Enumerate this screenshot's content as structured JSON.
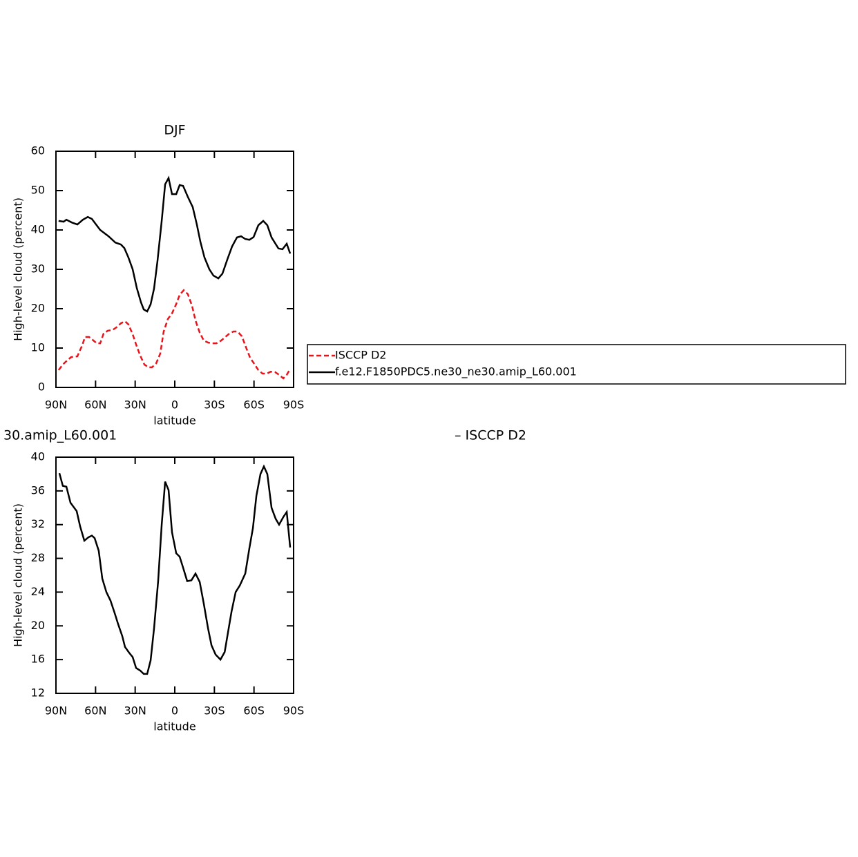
{
  "chart_data": [
    {
      "type": "line",
      "title": "DJF",
      "xlabel": "latitude",
      "ylabel": "High-level cloud (percent)",
      "xlim": [
        90,
        -90
      ],
      "ylim": [
        0,
        60
      ],
      "xticks": [
        {
          "value": 90,
          "label": "90N"
        },
        {
          "value": 60,
          "label": "60N"
        },
        {
          "value": 30,
          "label": "30N"
        },
        0,
        {
          "value": -30,
          "label": "30S"
        },
        {
          "value": -60,
          "label": "60S"
        },
        {
          "value": -90,
          "label": "90S"
        }
      ],
      "yticks": [
        0,
        10,
        20,
        30,
        40,
        50,
        60
      ],
      "legend": "right",
      "series": [
        {
          "name": "ISCCP D2",
          "color": "#e8141b",
          "dash": "dashed",
          "x": [
            88,
            84.8,
            81.7,
            78.5,
            73.8,
            70.1,
            68,
            64.9,
            62.3,
            59.1,
            56.5,
            53.9,
            50.8,
            47.1,
            44,
            40.8,
            37.7,
            35.1,
            31.9,
            29.3,
            26.2,
            23,
            19.9,
            17.3,
            14.1,
            11,
            8.4,
            5.2,
            2.1,
            -1.1,
            -3.7,
            -6.8,
            -9.9,
            -13.1,
            -15.7,
            -18.9,
            -22,
            -25.2,
            -28.3,
            -31.5,
            -35.1,
            -38.2,
            -41.4,
            -44.5,
            -47.6,
            -50.8,
            -54.4,
            -57.1,
            -60.2,
            -63.3,
            -66.5,
            -69.6,
            -72.7,
            -75.9,
            -79,
            -82.2,
            -84.8,
            -87.4
          ],
          "values": [
            4.4,
            5.8,
            6.8,
            7.7,
            7.9,
            10.7,
            12.8,
            12.8,
            12.1,
            11.2,
            11.2,
            13.7,
            14.4,
            14.6,
            15.3,
            16.3,
            16.8,
            16,
            13.5,
            10.9,
            8.1,
            5.8,
            5.1,
            5.1,
            6.1,
            8.6,
            14.2,
            17.4,
            18.8,
            21.2,
            23.5,
            24.7,
            23.7,
            20.7,
            17,
            13.9,
            11.9,
            11.4,
            11.2,
            11.2,
            11.9,
            12.8,
            13.7,
            14.2,
            14.2,
            13,
            9.8,
            7.5,
            6,
            4.4,
            3.5,
            3.5,
            4,
            3.9,
            3.2,
            2.3,
            3.2,
            4.7
          ]
        },
        {
          "name": "f.e12.F1850PDC5.ne30_ne30.amip_L60.001",
          "color": "#000000",
          "dash": "solid",
          "x": [
            88,
            84.2,
            82.1,
            78,
            73.8,
            69.6,
            65.9,
            62.8,
            56.5,
            50.2,
            45,
            40.8,
            38.2,
            35.1,
            31.9,
            28.8,
            25.6,
            23.5,
            20.9,
            18.3,
            15.7,
            13.1,
            9.9,
            7.3,
            4.7,
            2.1,
            -1.1,
            -3.7,
            -6.3,
            -9.9,
            -13.6,
            -16.7,
            -19.4,
            -22.5,
            -26.2,
            -29.3,
            -33,
            -36.1,
            -39.8,
            -43.4,
            -47.1,
            -50.2,
            -53.4,
            -56.5,
            -59.7,
            -63.3,
            -67,
            -70.1,
            -73.3,
            -78.5,
            -81.6,
            -84.8,
            -87.4
          ],
          "values": [
            42.3,
            42.1,
            42.6,
            41.9,
            41.4,
            42.6,
            43.3,
            42.8,
            40,
            38.4,
            36.8,
            36.3,
            35.4,
            33,
            30,
            25.3,
            21.6,
            19.8,
            19.3,
            21.1,
            25.1,
            32.1,
            42.3,
            51.6,
            53.2,
            49.1,
            49.1,
            51.4,
            51.2,
            48.4,
            45.8,
            41.4,
            37,
            33,
            30,
            28.4,
            27.7,
            28.9,
            32.5,
            35.8,
            38.1,
            38.4,
            37.7,
            37.5,
            38.2,
            41.2,
            42.3,
            41.2,
            38.1,
            35.3,
            35.1,
            36.5,
            34
          ]
        }
      ]
    },
    {
      "type": "line",
      "title_parts": [
        "30.amip_L60.001",
        "– ISCCP D2"
      ],
      "xlabel": "latitude",
      "ylabel": "High-level cloud (percent)",
      "xlim": [
        90,
        -90
      ],
      "ylim": [
        12,
        40
      ],
      "xticks": [
        {
          "value": 90,
          "label": "90N"
        },
        {
          "value": 60,
          "label": "60N"
        },
        {
          "value": 30,
          "label": "30N"
        },
        0,
        {
          "value": -30,
          "label": "30S"
        },
        {
          "value": -60,
          "label": "60S"
        },
        {
          "value": -90,
          "label": "90S"
        }
      ],
      "yticks": [
        12,
        16,
        20,
        24,
        28,
        32,
        36,
        40
      ],
      "series": [
        {
          "color": "#000000",
          "dash": "solid",
          "x": [
            87.4,
            84.8,
            82.1,
            79,
            74.3,
            71.7,
            68.5,
            65.4,
            62.8,
            60.7,
            57.6,
            54.9,
            51.8,
            48.7,
            45.5,
            42.9,
            39.8,
            37.7,
            34.5,
            31.9,
            29.3,
            26.2,
            23.5,
            20.9,
            18.3,
            15.7,
            12.6,
            9.9,
            7.3,
            4.7,
            2.1,
            -1.1,
            -3.7,
            -6.3,
            -9.4,
            -12.6,
            -15.7,
            -18.9,
            -22,
            -25.2,
            -27.8,
            -30.9,
            -34.6,
            -37.8,
            -40.4,
            -43,
            -46.1,
            -49.3,
            -53.4,
            -56.5,
            -59.2,
            -61.8,
            -64.9,
            -67.5,
            -70.1,
            -73.3,
            -76.4,
            -79,
            -82.2,
            -84.8,
            -87.4
          ],
          "values": [
            38.1,
            36.6,
            36.5,
            34.6,
            33.6,
            31.8,
            30.1,
            30.5,
            30.7,
            30.4,
            28.9,
            25.6,
            24,
            23,
            21.5,
            20.2,
            18.8,
            17.5,
            16.8,
            16.3,
            15,
            14.7,
            14.3,
            14.3,
            15.9,
            19.7,
            25.3,
            32,
            37.1,
            36.1,
            31.1,
            28.6,
            28.2,
            26.9,
            25.3,
            25.4,
            26.2,
            25.2,
            22.6,
            19.7,
            17.7,
            16.6,
            16,
            16.9,
            19.3,
            21.7,
            24,
            24.8,
            26.2,
            29.2,
            31.6,
            35.4,
            38,
            38.9,
            38,
            34,
            32.7,
            32,
            32.9,
            33.5,
            29.3
          ]
        }
      ]
    }
  ]
}
